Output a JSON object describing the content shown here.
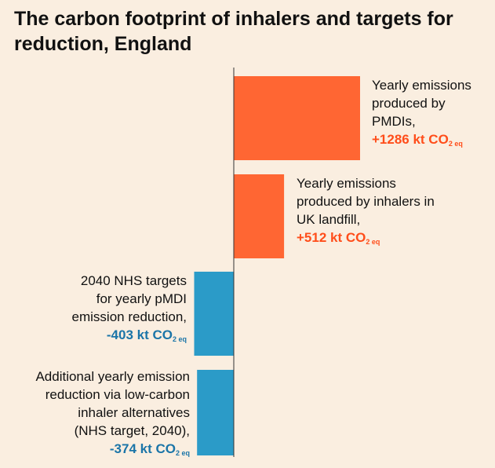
{
  "colors": {
    "background": "#faeee0",
    "positive": "#ff6633",
    "negative": "#2b9bc8",
    "positive_text": "#ff4d1a",
    "negative_text": "#1b75a8",
    "axis": "#333333"
  },
  "chart_data": {
    "type": "bar",
    "orientation": "horizontal",
    "title": "The carbon footprint of inhalers and targets for reduction, England",
    "unit_prefix": "kt CO",
    "unit_sub": "2 eq",
    "xlim": [
      -400,
      1286
    ],
    "grid": false,
    "series": [
      {
        "label_lines": [
          "Yearly emissions",
          "produced by",
          "PMDIs,"
        ],
        "value": 1286,
        "value_text": "+1286"
      },
      {
        "label_lines": [
          "Yearly emissions",
          "produced by inhalers in",
          "UK landfill,"
        ],
        "value": 512,
        "value_text": "+512"
      },
      {
        "label_lines": [
          "2040 NHS targets",
          "for yearly pMDI",
          "emission reduction,"
        ],
        "value": -403,
        "value_text": "-403"
      },
      {
        "label_lines": [
          "Additional yearly emission",
          "reduction via low-carbon",
          "inhaler alternatives",
          "(NHS target, 2040),"
        ],
        "value": -374,
        "value_text": "-374"
      }
    ]
  }
}
